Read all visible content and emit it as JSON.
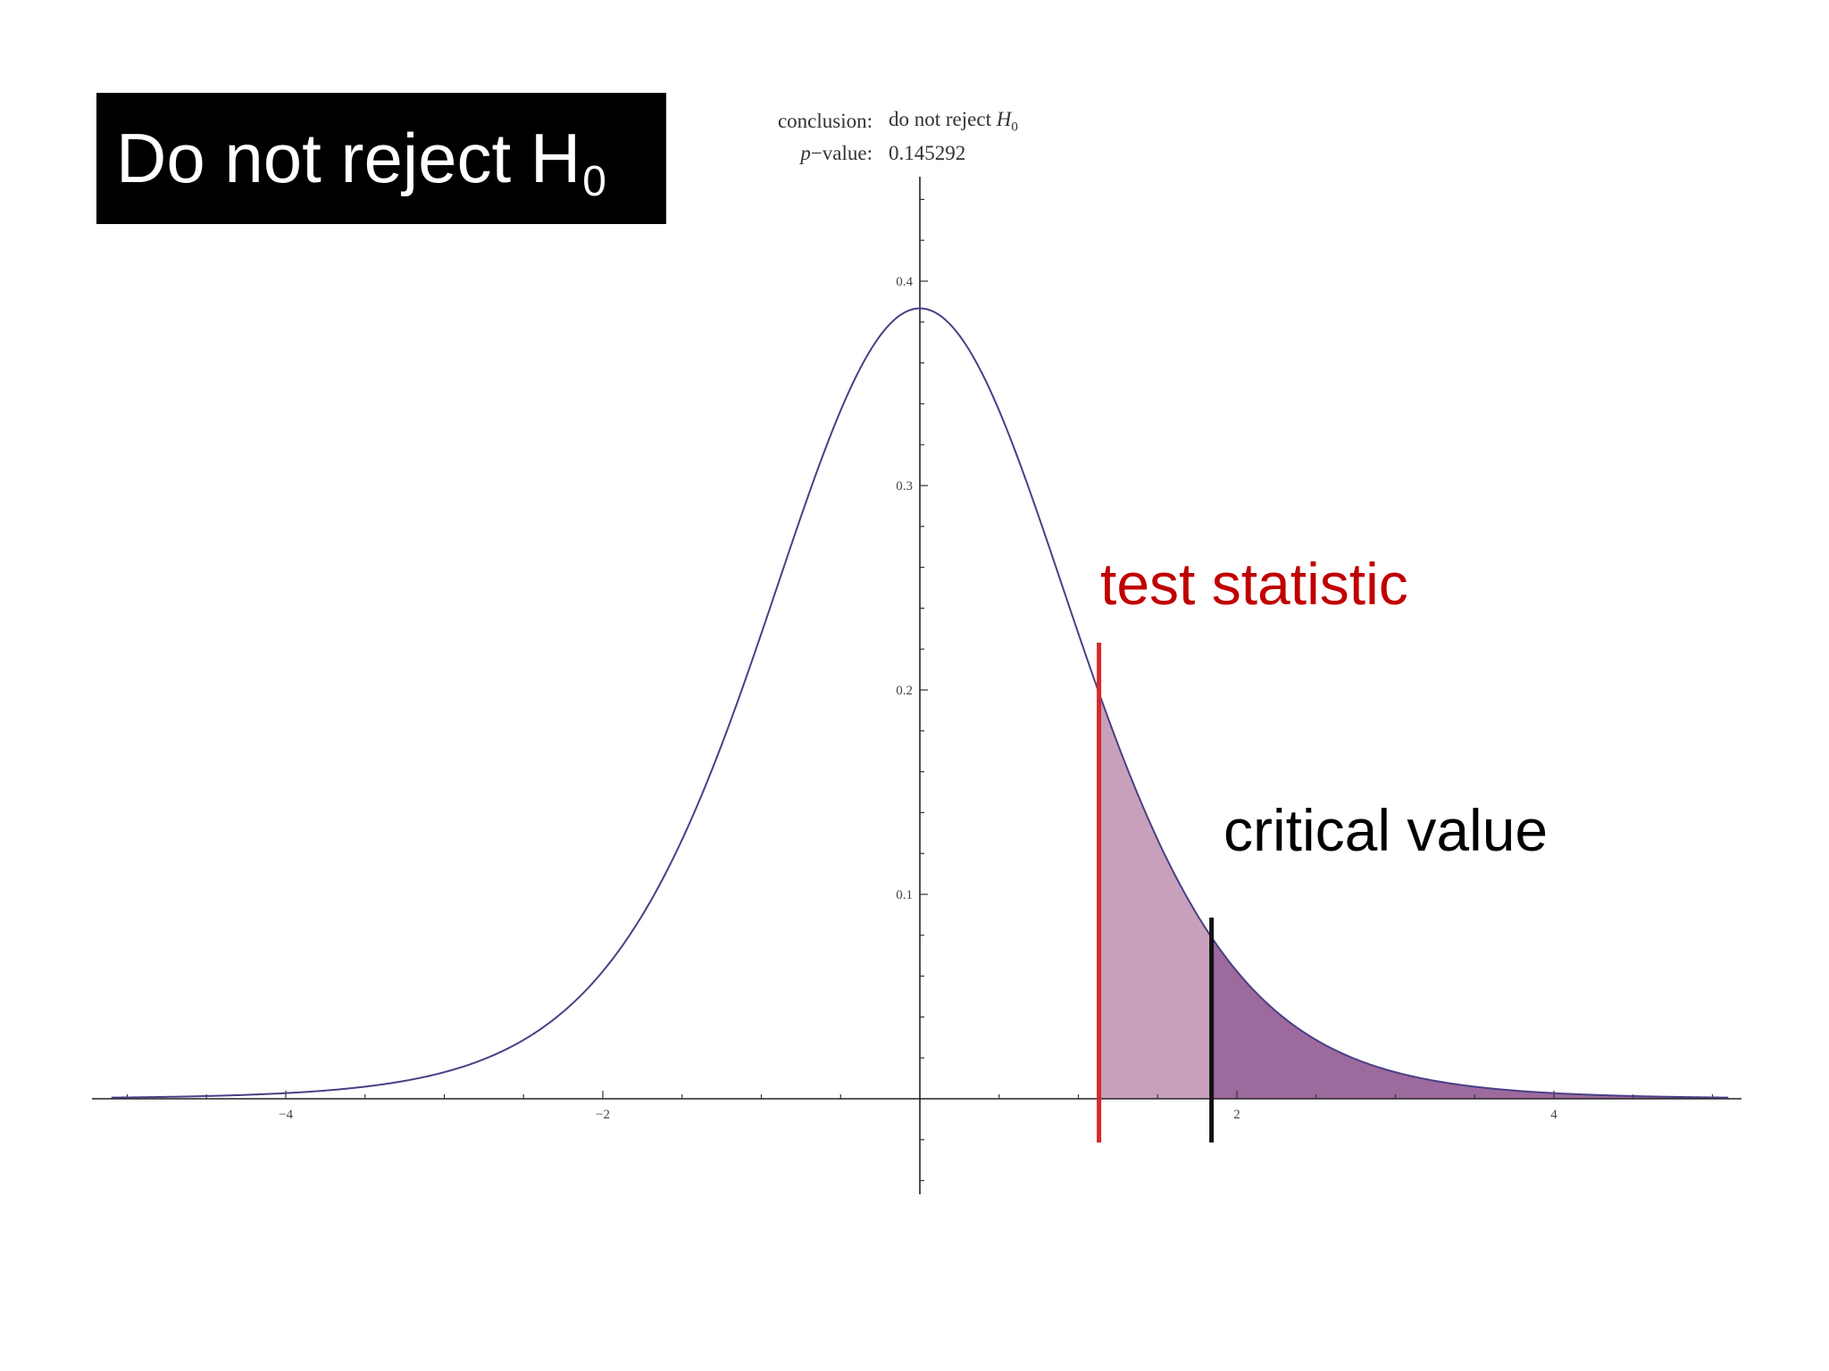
{
  "title": {
    "text": "Do not reject H",
    "subscript": "0"
  },
  "info": {
    "conclusion_label": "conclusion:",
    "conclusion_value": "do not reject",
    "conclusion_h": "H",
    "conclusion_h_sub": "0",
    "pvalue_label_p": "p",
    "pvalue_label_rest": "−value:",
    "pvalue_value": "0.145292"
  },
  "callouts": {
    "test_statistic": "test statistic",
    "critical_value": "critical value"
  },
  "colors": {
    "curve": "#4a3f86",
    "light_fill": "#c9a0bb",
    "dark_fill": "#9d6a9e",
    "test_line": "#d42b2b",
    "critical_line": "#111111"
  },
  "chart_data": {
    "type": "area",
    "distribution": "t",
    "degrees_of_freedom": 8,
    "xlim": [
      -5.1,
      5.1
    ],
    "ylim": [
      -0.05,
      0.45
    ],
    "x_ticks": [
      -4,
      -2,
      2,
      4
    ],
    "y_ticks": [
      0.1,
      0.2,
      0.3,
      0.4
    ],
    "x_tick_labels": [
      "−4",
      "−2",
      "2",
      "4"
    ],
    "y_tick_labels": [
      "0.1",
      "0.2",
      "0.3",
      "0.4"
    ],
    "test_statistic": 1.13,
    "critical_value": 1.84,
    "p_value": 0.145292,
    "shaded_region": [
      1.13,
      5.1
    ]
  }
}
